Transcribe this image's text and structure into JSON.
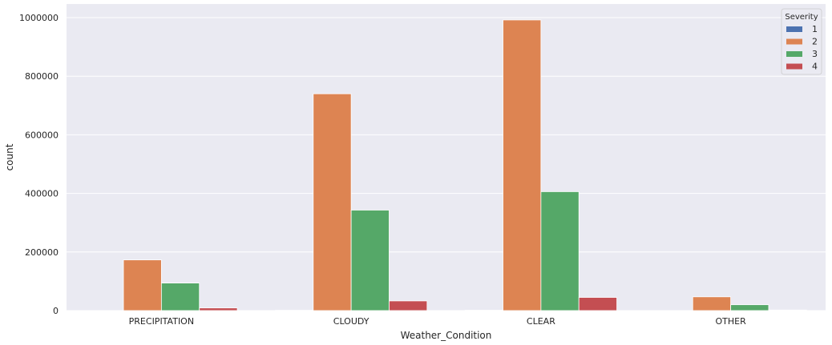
{
  "chart_data": {
    "type": "bar",
    "xlabel": "Weather_Condition",
    "ylabel": "count",
    "categories": [
      "PRECIPITATION",
      "CLOUDY",
      "CLEAR",
      "OTHER"
    ],
    "series": [
      {
        "name": "1",
        "color": "#4c72b0",
        "values": [
          300,
          900,
          1200,
          100
        ]
      },
      {
        "name": "2",
        "color": "#dd8452",
        "values": [
          173000,
          740000,
          992000,
          47000
        ]
      },
      {
        "name": "3",
        "color": "#55a868",
        "values": [
          94000,
          343000,
          406000,
          20000
        ]
      },
      {
        "name": "4",
        "color": "#c44e52",
        "values": [
          9000,
          33000,
          45000,
          2000
        ]
      }
    ],
    "ylim": [
      0,
      1000000
    ],
    "yticks": [
      0,
      200000,
      400000,
      600000,
      800000,
      1000000
    ],
    "ytick_labels": [
      "0",
      "200000",
      "400000",
      "600000",
      "800000",
      "1000000"
    ],
    "grid": true,
    "legend": {
      "title": "Severity",
      "position": "top-right"
    },
    "background": "#eaeaf2"
  }
}
